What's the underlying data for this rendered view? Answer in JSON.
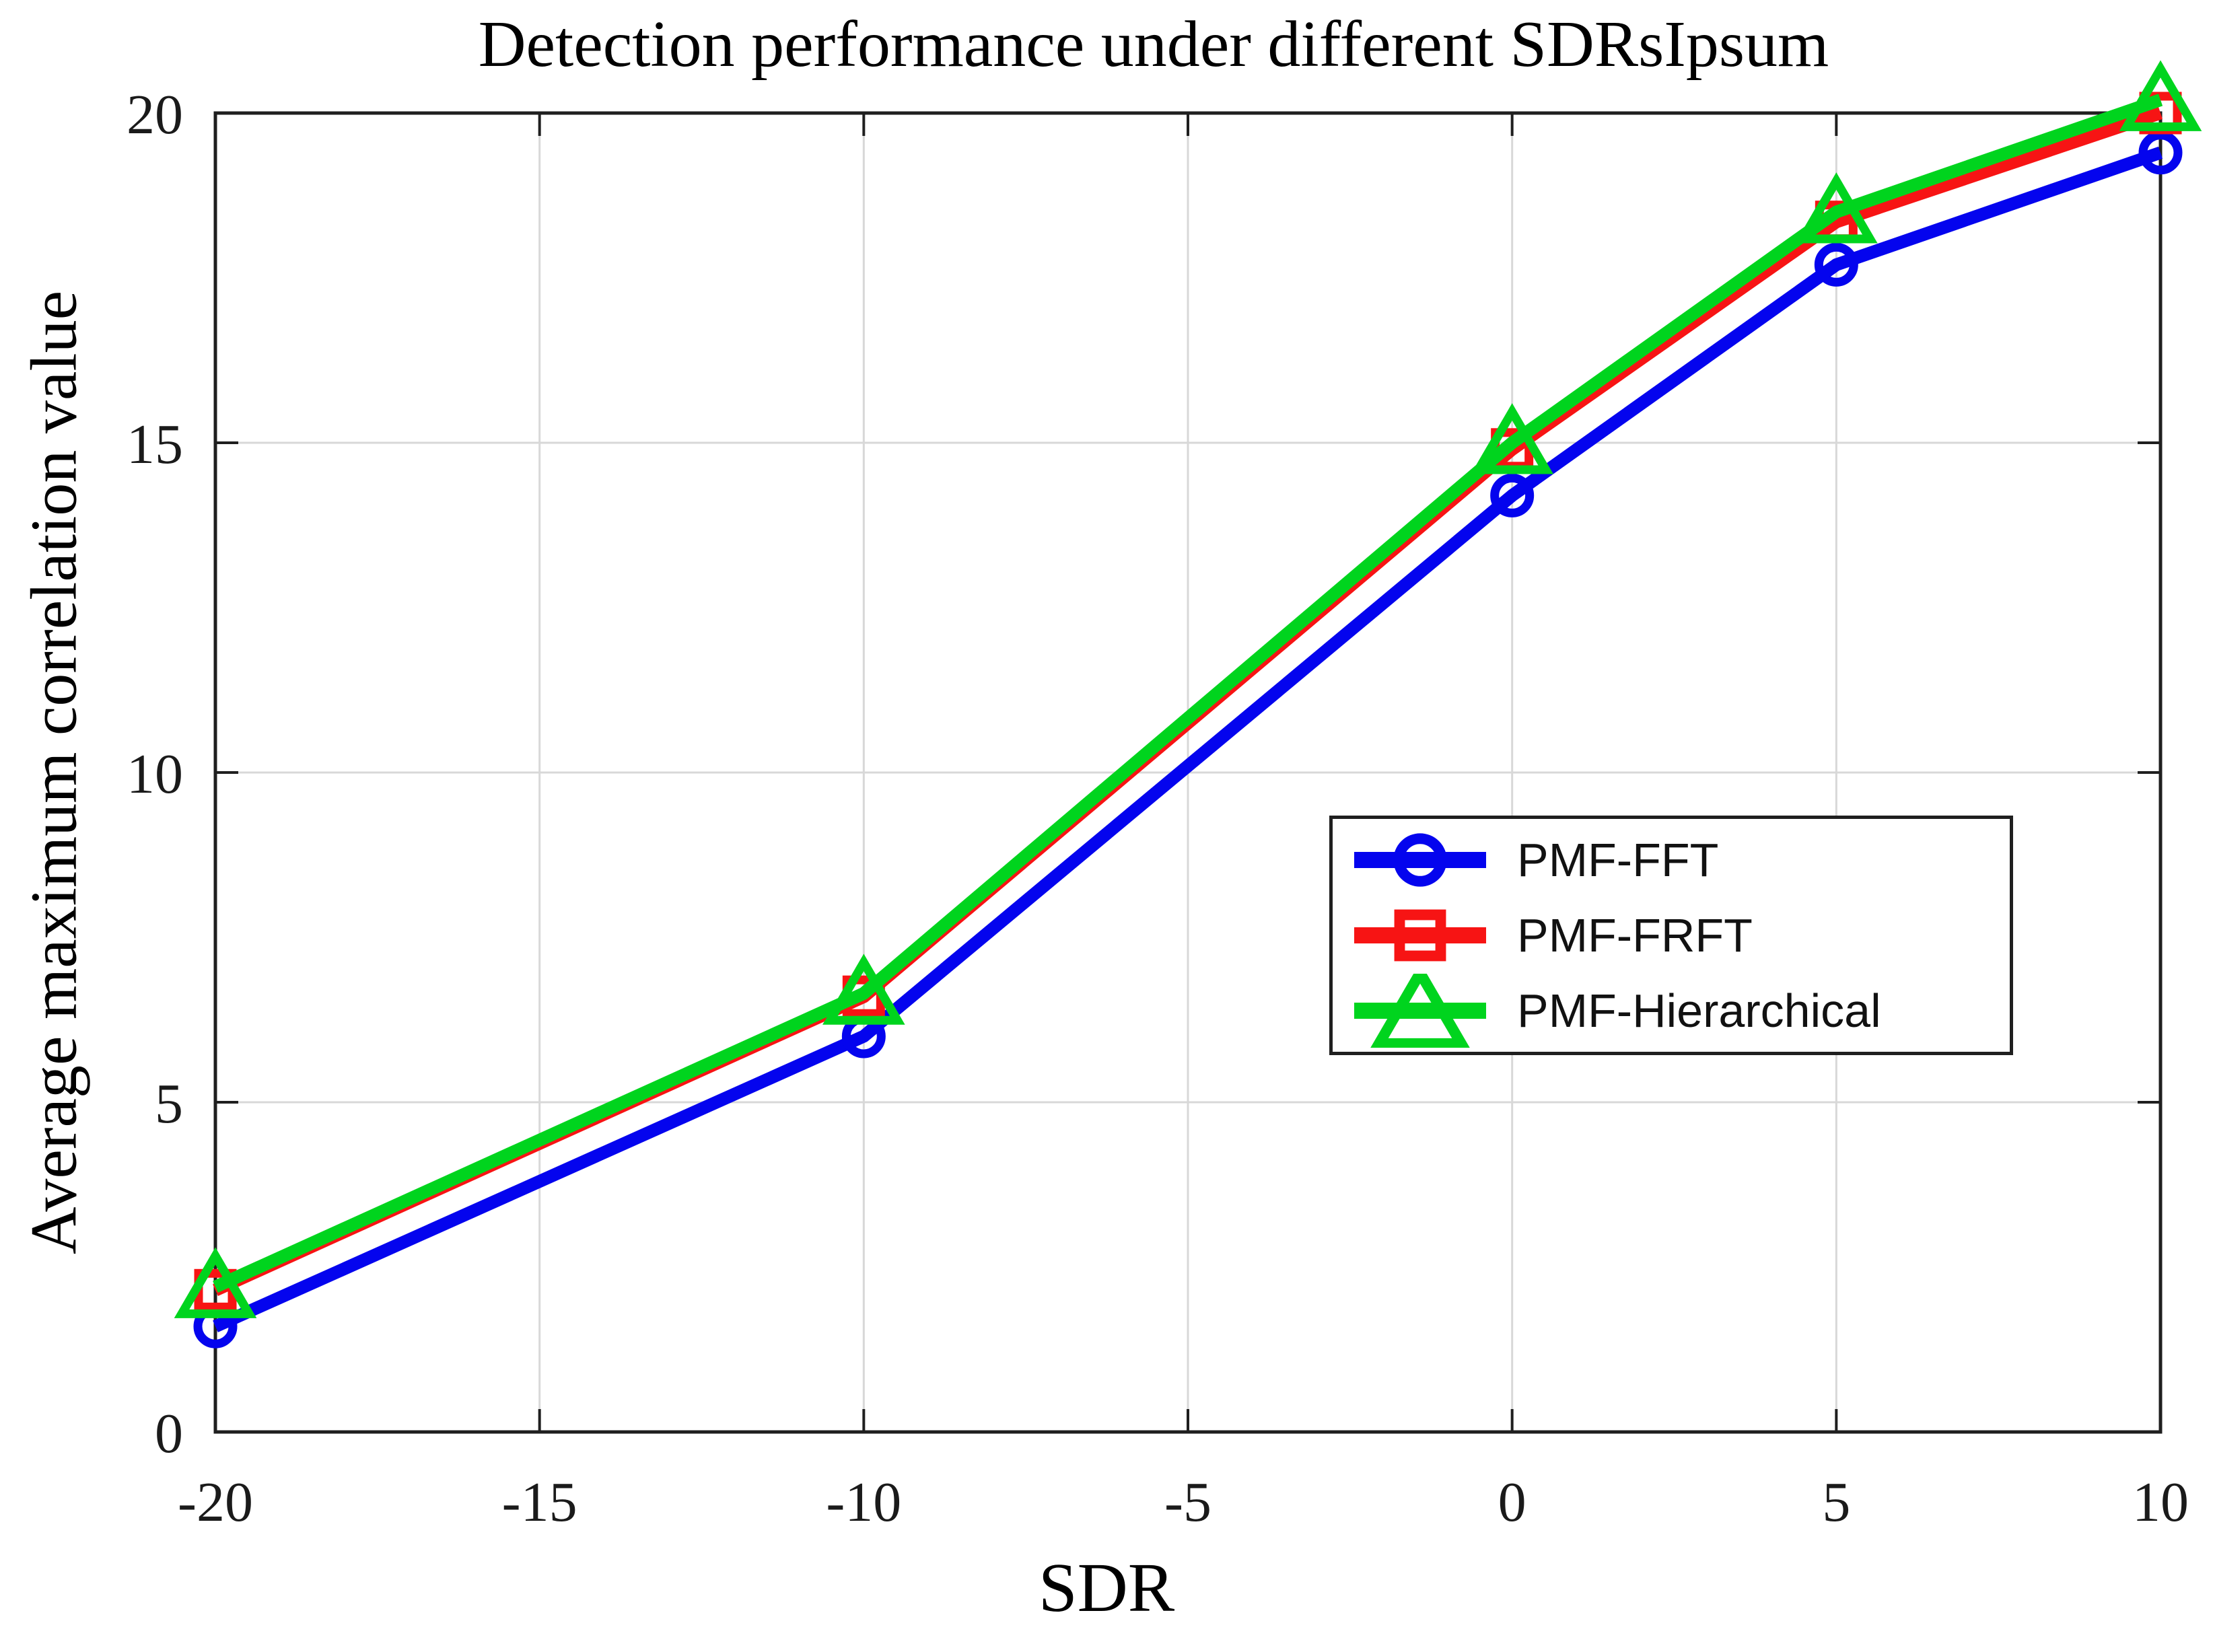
{
  "figure": {
    "background": "#ffffff",
    "axes_border_color": "#1f1f1f",
    "grid_color": "#d8d8d8",
    "tick_label_color": "#1a1a1a",
    "text_color": "#000000"
  },
  "chart_data": {
    "type": "line",
    "title": "Detection performance under different SDRsIpsum",
    "xlabel": "SDR",
    "ylabel": "Average maximum correlation value",
    "xlim": [
      -20,
      10
    ],
    "ylim": [
      0,
      20
    ],
    "xticks": [
      -20,
      -15,
      -10,
      -5,
      0,
      5,
      10
    ],
    "yticks": [
      0,
      5,
      10,
      15,
      20
    ],
    "grid": true,
    "legend_position": "middle-right",
    "x": [
      -20,
      -10,
      0,
      5,
      10
    ],
    "series": [
      {
        "name": "PMF-FFT",
        "color": "#0404ee",
        "marker": "circle",
        "values": [
          1.6,
          6.0,
          14.2,
          17.7,
          19.4
        ]
      },
      {
        "name": "PMF-FRFT",
        "color": "#f71414",
        "marker": "square",
        "values": [
          2.15,
          6.6,
          14.9,
          18.35,
          20.0
        ]
      },
      {
        "name": "PMF-Hierarchical",
        "color": "#00d41e",
        "marker": "triangle-up",
        "values": [
          2.2,
          6.65,
          15.0,
          18.5,
          20.2
        ]
      }
    ]
  }
}
